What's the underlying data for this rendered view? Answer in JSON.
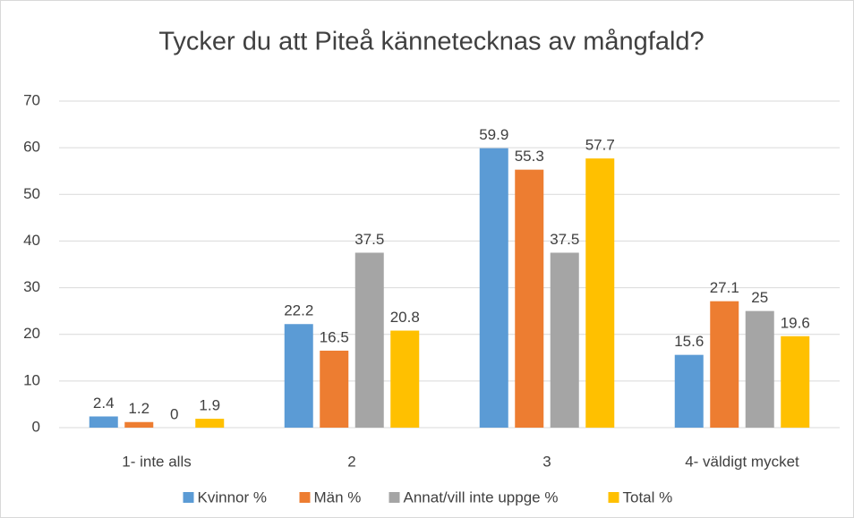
{
  "chart_data": {
    "type": "bar",
    "title": "Tycker du att Piteå kännetecknas av mångfald?",
    "categories": [
      "1- inte alls",
      "2",
      "3",
      "4- väldigt mycket"
    ],
    "series": [
      {
        "name": "Kvinnor %",
        "color": "#5b9bd5",
        "values": [
          2.4,
          22.2,
          59.9,
          15.6
        ]
      },
      {
        "name": "Män %",
        "color": "#ed7d31",
        "values": [
          1.2,
          16.5,
          55.3,
          27.1
        ]
      },
      {
        "name": "Annat/vill inte uppge %",
        "color": "#a5a5a5",
        "values": [
          0,
          37.5,
          37.5,
          25
        ]
      },
      {
        "name": "Total %",
        "color": "#ffc000",
        "values": [
          1.9,
          20.8,
          57.7,
          19.6
        ]
      }
    ],
    "ylim": [
      0,
      70
    ],
    "yticks": [
      0,
      10,
      20,
      30,
      40,
      50,
      60,
      70
    ],
    "grid": true,
    "legend": "bottom"
  }
}
